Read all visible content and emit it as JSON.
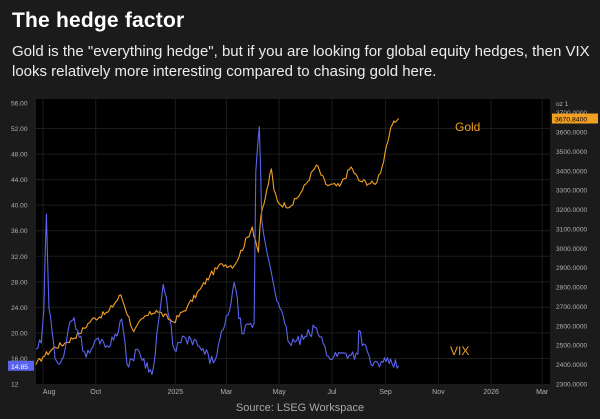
{
  "header": {
    "title": "The hedge factor",
    "subtitle": "Gold is the \"everything hedge\", but if you are looking for global equity hedges, then VIX looks relatively more interesting compared to chasing gold here."
  },
  "footer": {
    "source": "Source: LSEG Workspace"
  },
  "colors": {
    "background": "#1b1b1b",
    "plot_background": "#000000",
    "gold": "#f2a024",
    "vix": "#5a64ee",
    "grid": "#1c1c1c",
    "tick_text": "#b0b0b0"
  },
  "chart_data": {
    "type": "line",
    "title": "",
    "xlabel": "",
    "ylabel": "",
    "grid": true,
    "x_range": [
      "2024-07-24",
      "2026-03-10"
    ],
    "x_ticks": [
      {
        "label": "Aug",
        "date": "2024-08-01"
      },
      {
        "label": "Oct",
        "date": "2024-10-01"
      },
      {
        "label": "2025",
        "date": "2025-01-01"
      },
      {
        "label": "Mar",
        "date": "2025-03-01"
      },
      {
        "label": "May",
        "date": "2025-05-01"
      },
      {
        "label": "Jul",
        "date": "2025-07-01"
      },
      {
        "label": "Sep",
        "date": "2025-09-01"
      },
      {
        "label": "Nov",
        "date": "2025-11-01"
      },
      {
        "label": "2026",
        "date": "2026-01-01"
      },
      {
        "label": "Mar",
        "date": "2026-03-01"
      }
    ],
    "left_axis": {
      "series": "VIX",
      "ylim": [
        12,
        56
      ],
      "ticks": [
        "56.00",
        "52.00",
        "48.00",
        "44.00",
        "40.00",
        "36.00",
        "32.00",
        "28.00",
        "24.00",
        "20.00",
        "16.00",
        "12"
      ],
      "last_value_label": "14.85"
    },
    "right_axis": {
      "series": "Gold",
      "unit_label": "oz 1",
      "ylim": [
        2300,
        3750
      ],
      "ticks": [
        "3700.0000",
        "3600.0000",
        "3500.0000",
        "3400.0000",
        "3300.0000",
        "3200.0000",
        "3100.0000",
        "3000.0000",
        "2900.0000",
        "2800.0000",
        "2700.0000",
        "2600.0000",
        "2500.0000",
        "2400.0000",
        "2300.0000"
      ],
      "last_value_label": "3670.8400"
    },
    "series": [
      {
        "name": "Gold",
        "axis": "right",
        "x": [
          "2024-07-24",
          "2024-08-01",
          "2024-08-15",
          "2024-08-26",
          "2024-09-12",
          "2024-09-26",
          "2024-10-15",
          "2024-10-30",
          "2024-11-14",
          "2024-11-25",
          "2024-12-10",
          "2024-12-30",
          "2025-01-15",
          "2025-01-30",
          "2025-02-10",
          "2025-02-24",
          "2025-03-10",
          "2025-03-31",
          "2025-04-07",
          "2025-04-10",
          "2025-04-15",
          "2025-04-22",
          "2025-04-25",
          "2025-05-01",
          "2025-05-15",
          "2025-05-28",
          "2025-06-13",
          "2025-06-24",
          "2025-07-10",
          "2025-07-23",
          "2025-08-01",
          "2025-08-20",
          "2025-08-28",
          "2025-09-02",
          "2025-09-05",
          "2025-09-09",
          "2025-09-12",
          "2025-09-16"
        ],
        "values": [
          2400,
          2440,
          2490,
          2510,
          2560,
          2630,
          2670,
          2760,
          2570,
          2640,
          2680,
          2620,
          2700,
          2790,
          2860,
          2920,
          2910,
          3110,
          2980,
          3170,
          3260,
          3410,
          3300,
          3230,
          3220,
          3300,
          3430,
          3330,
          3320,
          3420,
          3350,
          3330,
          3420,
          3530,
          3580,
          3640,
          3650,
          3670
        ]
      },
      {
        "name": "VIX",
        "axis": "left",
        "x": [
          "2024-07-24",
          "2024-07-30",
          "2024-08-02",
          "2024-08-05",
          "2024-08-08",
          "2024-08-15",
          "2024-08-23",
          "2024-09-03",
          "2024-09-06",
          "2024-09-20",
          "2024-10-04",
          "2024-10-18",
          "2024-10-31",
          "2024-11-06",
          "2024-11-20",
          "2024-12-05",
          "2024-12-18",
          "2024-12-31",
          "2025-01-13",
          "2025-01-27",
          "2025-02-14",
          "2025-03-03",
          "2025-03-10",
          "2025-03-19",
          "2025-04-02",
          "2025-04-04",
          "2025-04-08",
          "2025-04-11",
          "2025-04-17",
          "2025-04-30",
          "2025-05-13",
          "2025-05-29",
          "2025-06-13",
          "2025-06-27",
          "2025-07-15",
          "2025-07-31",
          "2025-08-01",
          "2025-08-15",
          "2025-08-29",
          "2025-09-05",
          "2025-09-16"
        ],
        "values": [
          17.5,
          18.4,
          23.4,
          38.6,
          23.8,
          16.0,
          15.9,
          21.9,
          22.4,
          16.2,
          19.2,
          18.0,
          22.2,
          15.2,
          17.2,
          13.5,
          27.6,
          17.4,
          19.2,
          18.0,
          15.3,
          22.8,
          27.9,
          19.9,
          21.5,
          45.3,
          52.3,
          37.6,
          32.6,
          24.7,
          18.4,
          19.0,
          20.8,
          16.3,
          16.8,
          16.7,
          20.4,
          15.1,
          15.4,
          15.2,
          14.85
        ]
      }
    ],
    "annotations": [
      {
        "text": "Gold",
        "series": "Gold"
      },
      {
        "text": "VIX",
        "series": "VIX"
      }
    ]
  }
}
